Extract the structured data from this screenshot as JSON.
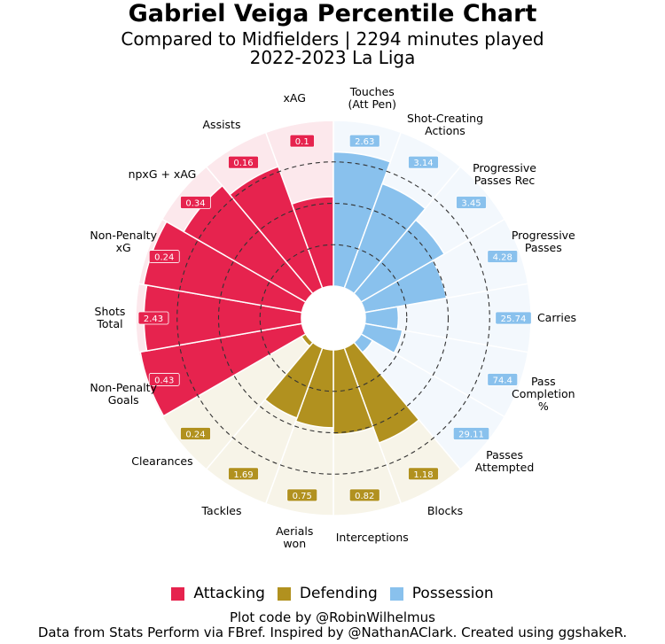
{
  "title": "Gabriel Veiga Percentile Chart",
  "subtitle1": "Compared to Midfielders | 2294 minutes played",
  "subtitle2": "2022-2023 La Liga",
  "legend": [
    {
      "name": "Attacking",
      "color": "#e6234e"
    },
    {
      "name": "Defending",
      "color": "#b1911f"
    },
    {
      "name": "Possession",
      "color": "#89c1ed"
    }
  ],
  "footer1": "Plot code by @RobinWilhelmus",
  "footer2": "Data from Stats Perform via FBref. Inspired by @NathanAClark. Created using ggshakeR.",
  "chart_data": {
    "type": "polar-bar",
    "range": [
      0,
      100
    ],
    "gridlines": [
      25,
      50,
      75
    ],
    "group_colors": {
      "Attacking": "#e6234e",
      "Defending": "#b1911f",
      "Possession": "#89c1ed"
    },
    "group_bg": {
      "Attacking": "#fce8ec",
      "Defending": "#f7f4e8",
      "Possession": "#f3f8fd"
    },
    "metrics": [
      {
        "label": "Touches\n(Att Pen)",
        "group": "Possession",
        "value": "2.63",
        "percentile": 81
      },
      {
        "label": "Shot-Creating\nActions",
        "group": "Possession",
        "value": "3.14",
        "percentile": 67
      },
      {
        "label": "Progressive\nPasses Rec",
        "group": "Possession",
        "value": "3.45",
        "percentile": 58
      },
      {
        "label": "Progressive\nPasses",
        "group": "Possession",
        "value": "4.28",
        "percentile": 50
      },
      {
        "label": "Carries",
        "group": "Possession",
        "value": "25.74",
        "percentile": 20
      },
      {
        "label": "Pass\nCompletion\n%",
        "group": "Possession",
        "value": "74.4",
        "percentile": 23
      },
      {
        "label": "Passes\nAttempted",
        "group": "Possession",
        "value": "29.11",
        "percentile": 8
      },
      {
        "label": "Blocks",
        "group": "Defending",
        "value": "1.18",
        "percentile": 61
      },
      {
        "label": "Interceptions",
        "group": "Defending",
        "value": "0.82",
        "percentile": 51
      },
      {
        "label": "Aerials\nwon",
        "group": "Defending",
        "value": "0.75",
        "percentile": 47
      },
      {
        "label": "Tackles",
        "group": "Defending",
        "value": "1.69",
        "percentile": 45
      },
      {
        "label": "Clearances",
        "group": "Defending",
        "value": "0.24",
        "percentile": 3
      },
      {
        "label": "Non-Penalty\nGoals",
        "group": "Attacking",
        "value": "0.43",
        "percentile": 99
      },
      {
        "label": "Shots\nTotal",
        "group": "Attacking",
        "value": "2.43",
        "percentile": 95
      },
      {
        "label": "Non-Penalty\nxG",
        "group": "Attacking",
        "value": "0.24",
        "percentile": 97
      },
      {
        "label": "npxG + xAG",
        "group": "Attacking",
        "value": "0.34",
        "percentile": 85
      },
      {
        "label": "Assists",
        "group": "Attacking",
        "value": "0.16",
        "percentile": 78
      },
      {
        "label": "xAG",
        "group": "Attacking",
        "value": "0.1",
        "percentile": 54
      }
    ]
  }
}
